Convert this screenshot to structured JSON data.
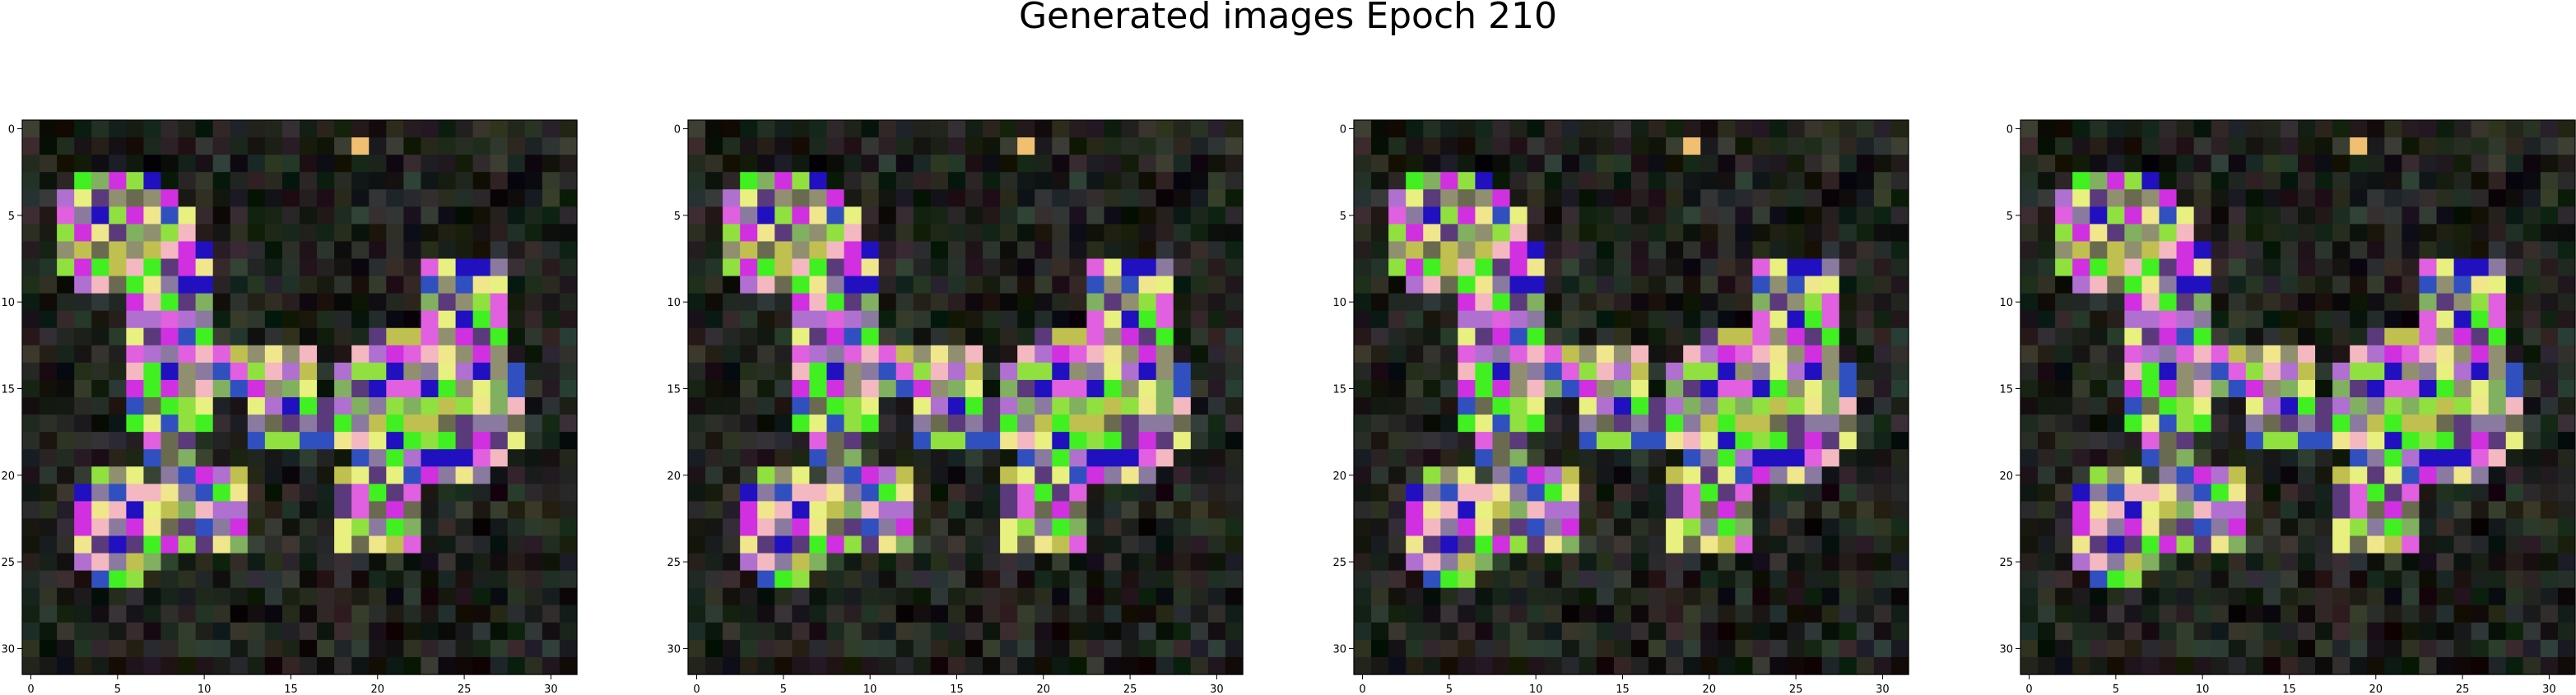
{
  "figure": {
    "title": "Generated images Epoch 210"
  },
  "chart_data": [
    {
      "type": "heatmap",
      "title": "",
      "xlabel": "",
      "ylabel": "",
      "xlim": [
        -0.5,
        31.5
      ],
      "ylim": [
        31.5,
        -0.5
      ],
      "grid": false,
      "x_ticks": [
        0,
        5,
        10,
        15,
        20,
        25,
        30
      ],
      "y_ticks": [
        0,
        5,
        10,
        15,
        20,
        25,
        30
      ]
    },
    {
      "type": "heatmap",
      "title": "",
      "xlabel": "",
      "ylabel": "",
      "xlim": [
        -0.5,
        31.5
      ],
      "ylim": [
        31.5,
        -0.5
      ],
      "grid": false,
      "x_ticks": [
        0,
        5,
        10,
        15,
        20,
        25,
        30
      ],
      "y_ticks": [
        0,
        5,
        10,
        15,
        20,
        25,
        30
      ]
    },
    {
      "type": "heatmap",
      "title": "",
      "xlabel": "",
      "ylabel": "",
      "xlim": [
        -0.5,
        31.5
      ],
      "ylim": [
        31.5,
        -0.5
      ],
      "grid": false,
      "x_ticks": [
        0,
        5,
        10,
        15,
        20,
        25,
        30
      ],
      "y_ticks": [
        0,
        5,
        10,
        15,
        20,
        25,
        30
      ]
    },
    {
      "type": "heatmap",
      "title": "",
      "xlabel": "",
      "ylabel": "",
      "xlim": [
        -0.5,
        31.5
      ],
      "ylim": [
        31.5,
        -0.5
      ],
      "grid": false,
      "x_ticks": [
        0,
        5,
        10,
        15,
        20,
        25,
        30
      ],
      "y_ticks": [
        0,
        5,
        10,
        15,
        20,
        25,
        30
      ]
    }
  ]
}
